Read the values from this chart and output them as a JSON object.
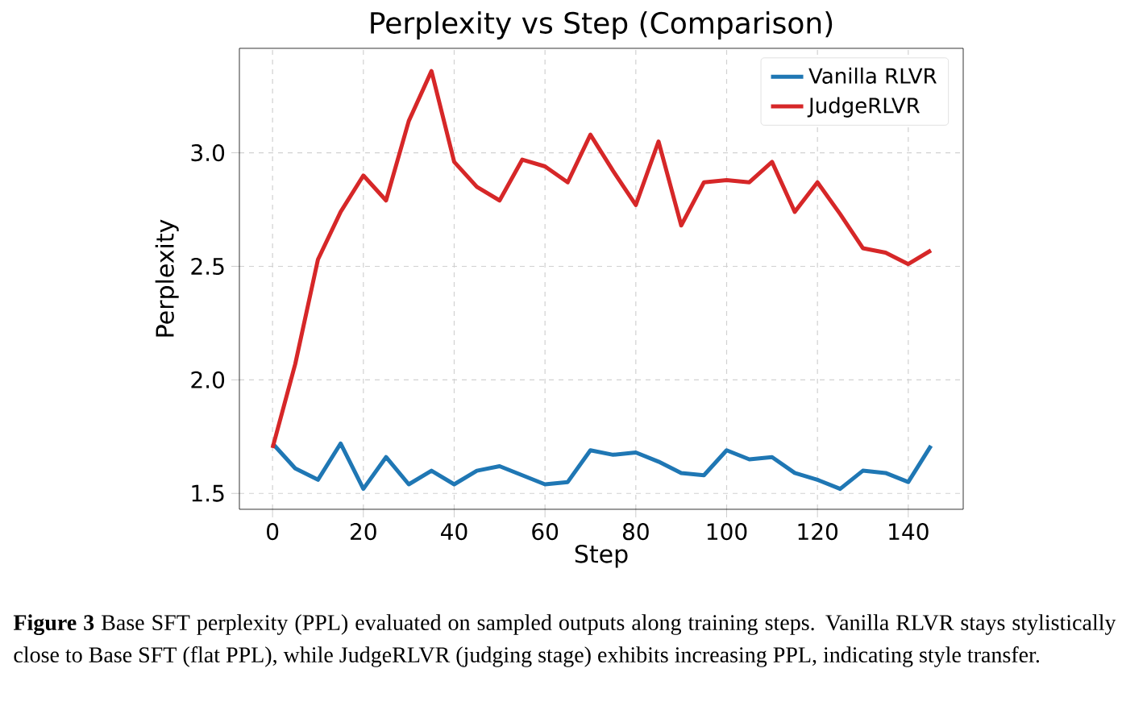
{
  "chart_data": {
    "type": "line",
    "title": "Perplexity vs Step (Comparison)",
    "xlabel": "Step",
    "ylabel": "Perplexity",
    "x": [
      0,
      5,
      10,
      15,
      20,
      25,
      30,
      35,
      40,
      45,
      50,
      55,
      60,
      65,
      70,
      75,
      80,
      85,
      90,
      95,
      100,
      105,
      110,
      115,
      120,
      125,
      130,
      135,
      140,
      145
    ],
    "series": [
      {
        "name": "Vanilla RLVR",
        "color": "#1f77b4",
        "values": [
          1.72,
          1.61,
          1.56,
          1.72,
          1.52,
          1.66,
          1.54,
          1.6,
          1.54,
          1.6,
          1.62,
          1.58,
          1.54,
          1.55,
          1.69,
          1.67,
          1.68,
          1.64,
          1.59,
          1.58,
          1.69,
          1.65,
          1.66,
          1.59,
          1.56,
          1.52,
          1.6,
          1.59,
          1.55,
          1.71
        ]
      },
      {
        "name": "JudgeRLVR",
        "color": "#d62728",
        "values": [
          1.7,
          2.07,
          2.53,
          2.74,
          2.9,
          2.79,
          3.14,
          3.36,
          2.96,
          2.85,
          2.79,
          2.97,
          2.94,
          2.87,
          3.08,
          2.92,
          2.77,
          3.05,
          2.68,
          2.87,
          2.88,
          2.87,
          2.96,
          2.74,
          2.87,
          2.73,
          2.58,
          2.56,
          2.51,
          2.57
        ]
      }
    ],
    "xlim": [
      -7.3,
      152.1
    ],
    "ylim": [
      1.43,
      3.46
    ],
    "xticks": [
      0,
      20,
      40,
      60,
      80,
      100,
      120,
      140
    ],
    "yticks": [
      {
        "value": 1.5,
        "label": "1.5"
      },
      {
        "value": 2,
        "label": "2.0"
      },
      {
        "value": 2.5,
        "label": "2.5"
      },
      {
        "value": 3,
        "label": "3.0"
      }
    ],
    "grid": true,
    "legend": "top right",
    "line_style": "solid",
    "annotations": [
      "**Figure 3**  Base SFT perplexity (PPL) evaluated on sampled outputs along training steps. Vanilla RLVR stays stylistically close to Base SFT (flat PPL), while JudgeRLVR (judging stage) exhibits increasing PPL, indicating style transfer."
    ]
  }
}
